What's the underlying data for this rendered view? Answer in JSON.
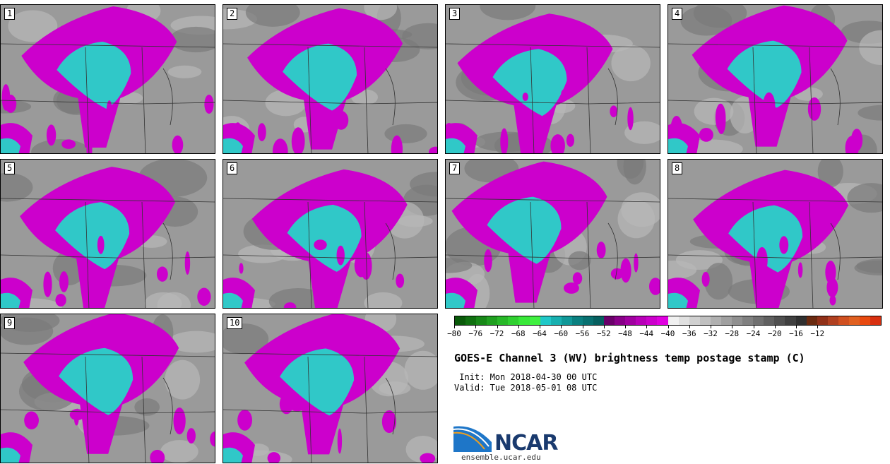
{
  "panels": [
    {
      "number": "1"
    },
    {
      "number": "2"
    },
    {
      "number": "3"
    },
    {
      "number": "4"
    },
    {
      "number": "5"
    },
    {
      "number": "6"
    },
    {
      "number": "7"
    },
    {
      "number": "8"
    },
    {
      "number": "9"
    },
    {
      "number": "10"
    }
  ],
  "colorbar": {
    "tick_labels": [
      "-80",
      "-76",
      "-72",
      "-68",
      "-64",
      "-60",
      "-56",
      "-52",
      "-48",
      "-44",
      "-40",
      "-36",
      "-32",
      "-28",
      "-24",
      "-20",
      "-16",
      "-12"
    ],
    "colors": [
      "#0a5a0a",
      "#107010",
      "#188818",
      "#20a020",
      "#28b828",
      "#30d030",
      "#38e838",
      "#40f040",
      "#20c8c8",
      "#18b0b0",
      "#109898",
      "#0a8080",
      "#087070",
      "#065f5f",
      "#6a006a",
      "#880088",
      "#a000a0",
      "#b800b8",
      "#cc00cc",
      "#e000e0",
      "#f0f0f0",
      "#e0e0e0",
      "#d0d0d0",
      "#c0c0c0",
      "#b0b0b0",
      "#a0a0a0",
      "#909090",
      "#808080",
      "#707070",
      "#606060",
      "#505050",
      "#404040",
      "#303030",
      "#6a2a10",
      "#903018",
      "#b04020",
      "#d05020",
      "#e06020",
      "#e84a10",
      "#d83010"
    ]
  },
  "title": "GOES-E Channel 3 (WV) brightness temp postage stamp (C)",
  "init": " Init: Mon 2018-04-30 00 UTC",
  "valid": "Valid: Tue 2018-05-01 08 UTC",
  "logo": {
    "text": "NCAR",
    "url": "ensemble.ucar.edu"
  },
  "palette": {
    "gray_bg": "#9a9a9a",
    "magenta": "#cc00cc",
    "cyan": "#30c8c8",
    "border_line": "#333333"
  }
}
